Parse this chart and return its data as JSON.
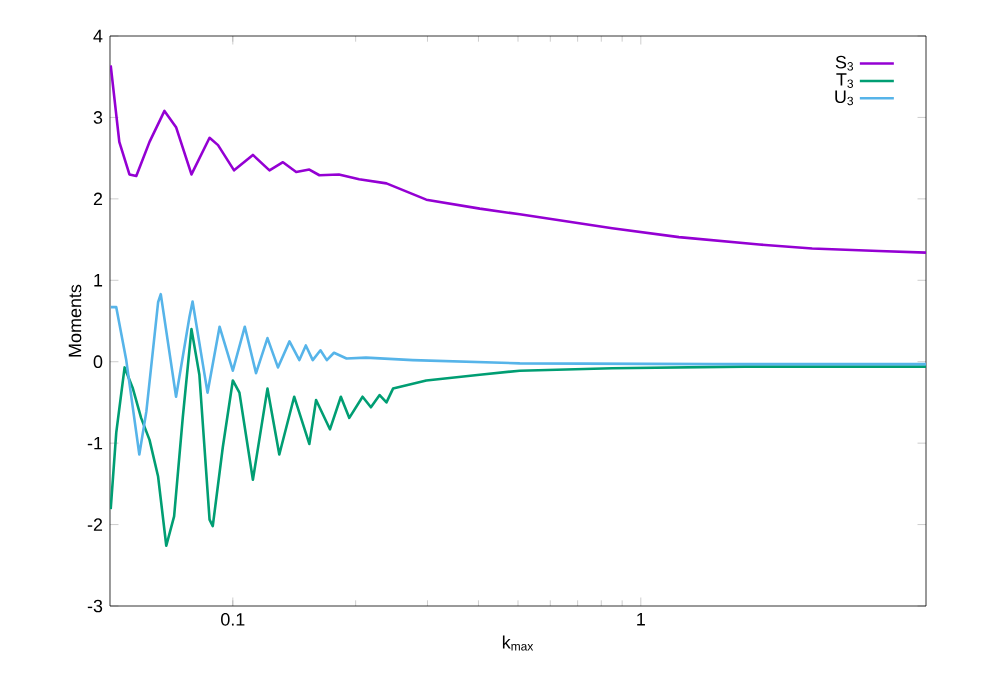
{
  "chart_data": {
    "type": "line",
    "xlabel": "k$_{max}$",
    "ylabel": "Moments",
    "log": "x",
    "xlim": [
      0.05,
      5
    ],
    "ylim": [
      -3,
      4
    ],
    "xticks": [
      0.1,
      1
    ],
    "yticks": [
      -3,
      -2,
      -1,
      0,
      1,
      2,
      3,
      4
    ],
    "legend": "top right",
    "grid": false,
    "marker": "none",
    "line_style": "solid",
    "series": [
      {
        "name": "S$_{3}$",
        "color": "#9400d3",
        "x": [
          0.0502,
          0.0527,
          0.0558,
          0.058,
          0.0625,
          0.068,
          0.0726,
          0.0792,
          0.0877,
          0.092,
          0.1007,
          0.112,
          0.123,
          0.1327,
          0.143,
          0.154,
          0.163,
          0.182,
          0.204,
          0.238,
          0.298,
          0.403,
          0.505,
          0.851,
          1.24,
          1.95,
          2.63,
          3.83,
          5.0
        ],
        "values": [
          3.64,
          2.7,
          2.3,
          2.28,
          2.7,
          3.08,
          2.88,
          2.3,
          2.75,
          2.66,
          2.35,
          2.54,
          2.35,
          2.45,
          2.33,
          2.36,
          2.29,
          2.3,
          2.24,
          2.19,
          1.99,
          1.88,
          1.81,
          1.64,
          1.53,
          1.44,
          1.39,
          1.36,
          1.34
        ]
      },
      {
        "name": "T$_{3}$",
        "color": "#009e73",
        "x": [
          0.0502,
          0.0518,
          0.0543,
          0.0569,
          0.0596,
          0.0625,
          0.0656,
          0.0687,
          0.0718,
          0.0754,
          0.0792,
          0.0828,
          0.0877,
          0.0893,
          0.0945,
          0.1,
          0.1038,
          0.112,
          0.1216,
          0.13,
          0.1414,
          0.154,
          0.16,
          0.173,
          0.184,
          0.193,
          0.208,
          0.218,
          0.229,
          0.238,
          0.247,
          0.298,
          0.403,
          0.505,
          0.851,
          1.8,
          5.0
        ],
        "values": [
          -1.81,
          -0.87,
          -0.07,
          -0.33,
          -0.69,
          -0.96,
          -1.41,
          -2.26,
          -1.9,
          -0.69,
          0.4,
          -0.16,
          -1.94,
          -2.02,
          -1.05,
          -0.23,
          -0.38,
          -1.45,
          -0.33,
          -1.14,
          -0.43,
          -1.01,
          -0.47,
          -0.83,
          -0.43,
          -0.69,
          -0.43,
          -0.56,
          -0.41,
          -0.5,
          -0.33,
          -0.23,
          -0.16,
          -0.11,
          -0.08,
          -0.06,
          -0.06
        ]
      },
      {
        "name": "U$_{3}$",
        "color": "#56b4e9",
        "x": [
          0.0502,
          0.0518,
          0.0548,
          0.058,
          0.059,
          0.0614,
          0.0656,
          0.0666,
          0.0726,
          0.0783,
          0.0797,
          0.0867,
          0.0928,
          0.1,
          0.107,
          0.114,
          0.1216,
          0.129,
          0.1377,
          0.1456,
          0.151,
          0.157,
          0.164,
          0.17,
          0.177,
          0.19,
          0.212,
          0.276,
          0.505,
          1.5,
          5.0
        ],
        "values": [
          0.67,
          0.67,
          0.02,
          -0.87,
          -1.14,
          -0.61,
          0.73,
          0.83,
          -0.43,
          0.55,
          0.74,
          -0.38,
          0.43,
          -0.11,
          0.43,
          -0.14,
          0.29,
          -0.07,
          0.25,
          0.02,
          0.2,
          0.02,
          0.14,
          0.02,
          0.11,
          0.04,
          0.05,
          0.02,
          -0.02,
          -0.03,
          -0.03
        ]
      }
    ]
  }
}
